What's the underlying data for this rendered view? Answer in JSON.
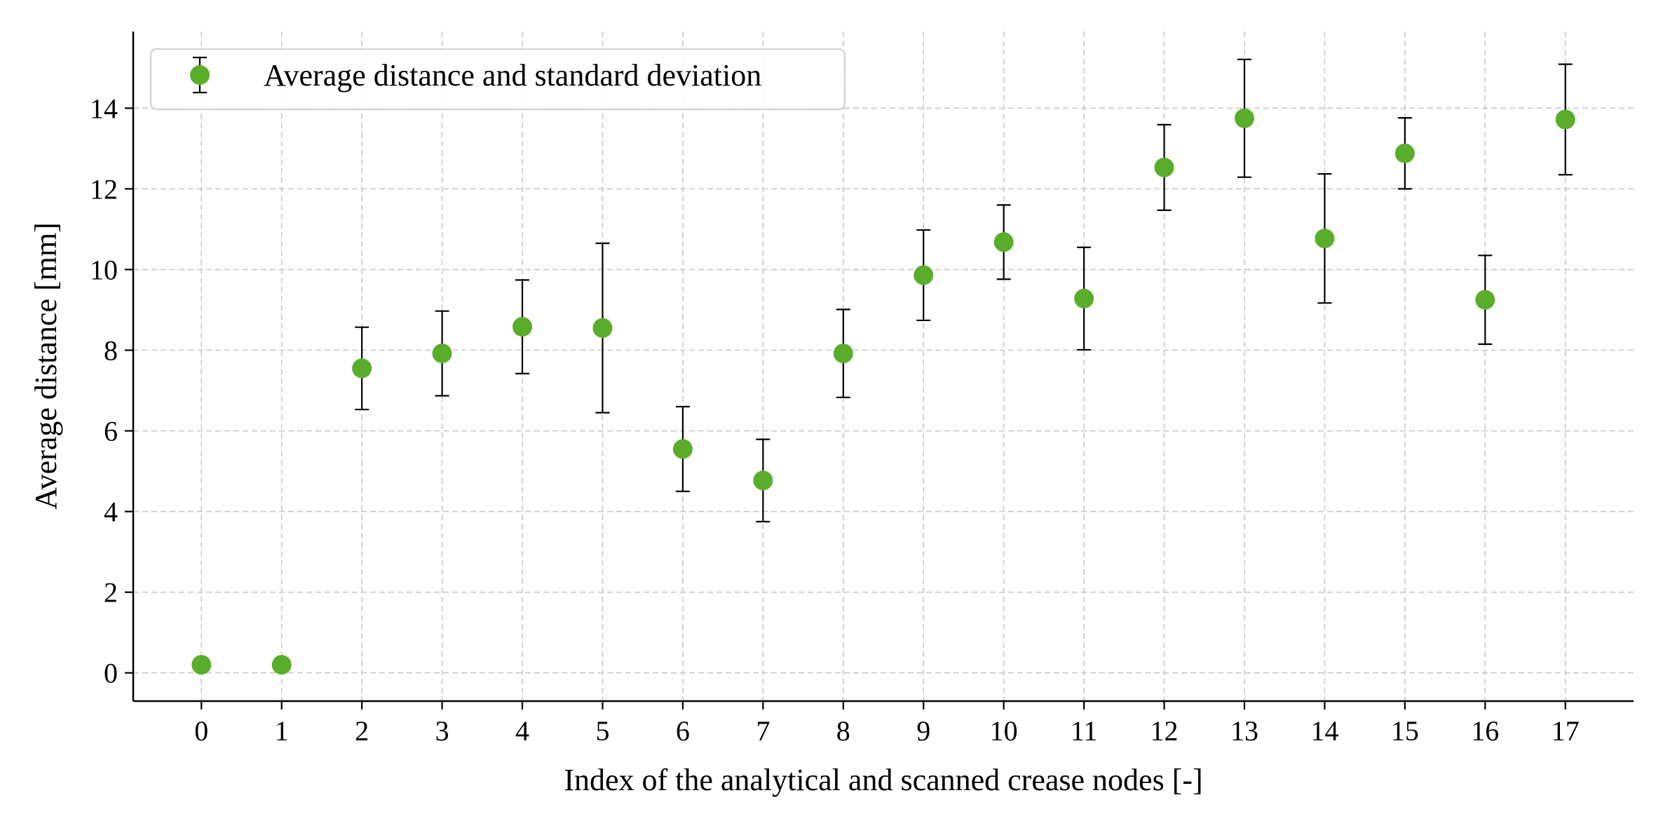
{
  "chart_data": {
    "type": "scatter",
    "title": "",
    "xlabel": "Index of the analytical and scanned crease nodes [-]",
    "ylabel": "Average distance [mm]",
    "xlim": [
      -0.85,
      17.85
    ],
    "ylim": [
      -0.7,
      15.9
    ],
    "x_ticks": [
      0,
      1,
      2,
      3,
      4,
      5,
      6,
      7,
      8,
      9,
      10,
      11,
      12,
      13,
      14,
      15,
      16,
      17
    ],
    "y_ticks": [
      0,
      2,
      4,
      6,
      8,
      10,
      12,
      14
    ],
    "grid": true,
    "legend_position": "upper-left",
    "marker_color": "#5aad2a",
    "errorbar_color": "#000000",
    "series": [
      {
        "name": "Average distance and standard deviation",
        "x": [
          0,
          1,
          2,
          3,
          4,
          5,
          6,
          7,
          8,
          9,
          10,
          11,
          12,
          13,
          14,
          15,
          16,
          17
        ],
        "y": [
          0.2,
          0.2,
          7.55,
          7.92,
          8.58,
          8.55,
          5.55,
          4.77,
          7.92,
          9.86,
          10.68,
          9.28,
          12.53,
          13.75,
          10.77,
          12.88,
          9.25,
          13.72
        ],
        "yerr": [
          0.1,
          0.1,
          1.02,
          1.05,
          1.16,
          2.1,
          1.05,
          1.02,
          1.09,
          1.12,
          0.92,
          1.27,
          1.06,
          1.46,
          1.6,
          0.88,
          1.1,
          1.37
        ]
      }
    ]
  }
}
